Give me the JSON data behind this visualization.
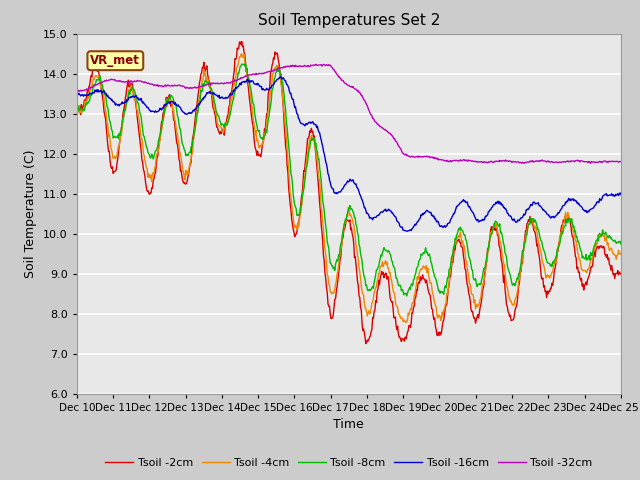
{
  "title": "Soil Temperatures Set 2",
  "xlabel": "Time",
  "ylabel": "Soil Temperature (C)",
  "ylim": [
    6.0,
    15.0
  ],
  "yticks": [
    6.0,
    7.0,
    8.0,
    9.0,
    10.0,
    11.0,
    12.0,
    13.0,
    14.0,
    15.0
  ],
  "xtick_labels": [
    "Dec 10",
    "Dec 11",
    "Dec 12",
    "Dec 13",
    "Dec 14",
    "Dec 15",
    "Dec 16",
    "Dec 17",
    "Dec 18",
    "Dec 19",
    "Dec 20",
    "Dec 21",
    "Dec 22",
    "Dec 23",
    "Dec 24",
    "Dec 25"
  ],
  "annotation_text": "VR_met",
  "line_colors": [
    "#dd0000",
    "#ee8800",
    "#00bb00",
    "#0000cc",
    "#bb00bb"
  ],
  "line_labels": [
    "Tsoil -2cm",
    "Tsoil -4cm",
    "Tsoil -8cm",
    "Tsoil -16cm",
    "Tsoil -32cm"
  ],
  "axes_facecolor": "#e8e8e8",
  "fig_facecolor": "#cccccc",
  "grid_color": "#ffffff",
  "n_days": 15,
  "pts_per_day": 48
}
